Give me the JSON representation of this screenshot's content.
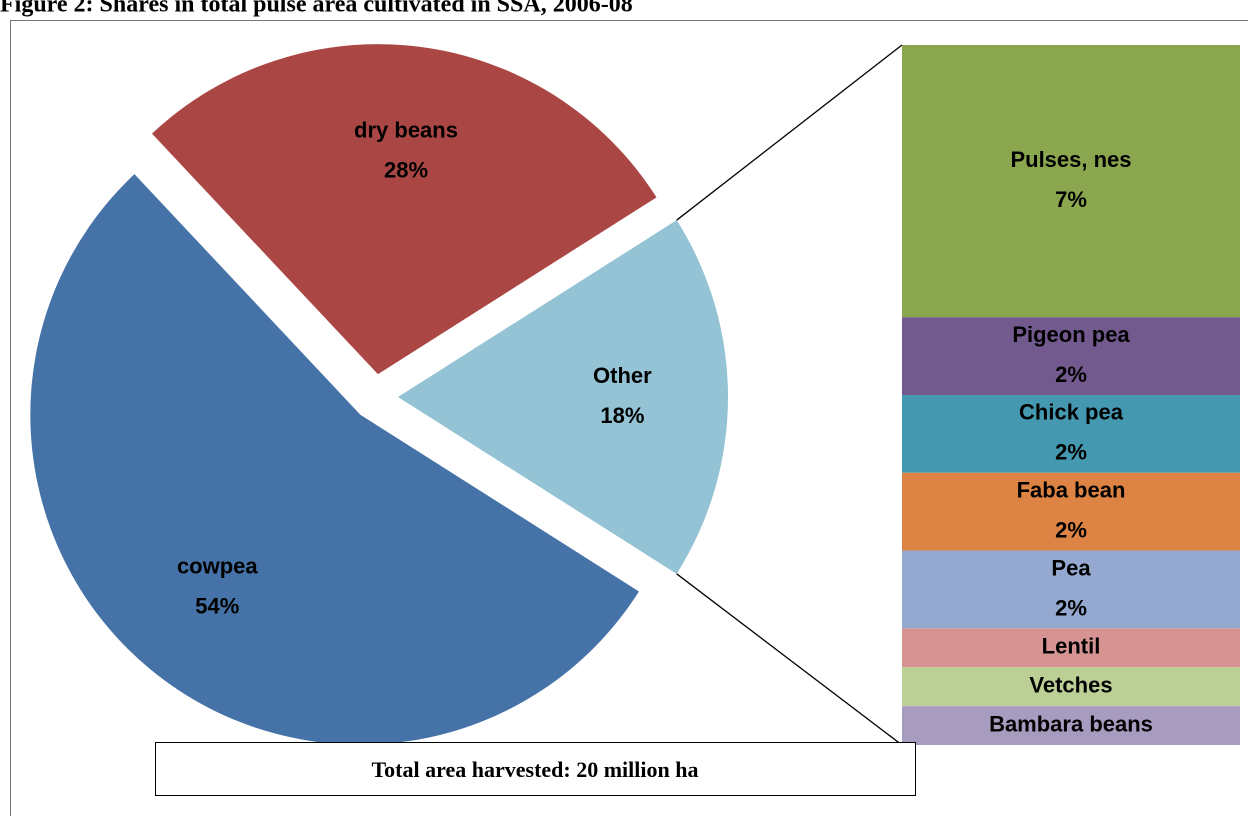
{
  "title": "Figure 2: Shares in total pulse area cultivated in SSA, 2006-08",
  "annotation": "Total area harvested: 20 million ha",
  "chart_data": [
    {
      "type": "pie",
      "categories": [
        "cowpea",
        "dry beans",
        "Other"
      ],
      "values": [
        54,
        28,
        18
      ],
      "value_labels": [
        "54%",
        "28%",
        "18%"
      ],
      "colors": [
        "#4572a7",
        "#aa4643",
        "#93c3d4"
      ]
    },
    {
      "type": "bar",
      "stacked": true,
      "categories": [
        "Pulses, nes",
        "Pigeon pea",
        "Chick pea",
        "Faba bean",
        "Pea",
        "Lentil",
        "Vetches",
        "Bambara beans"
      ],
      "values": [
        7,
        2,
        2,
        2,
        2,
        1,
        1,
        1
      ],
      "value_labels": [
        "7%",
        "2%",
        "2%",
        "2%",
        "2%",
        null,
        null,
        null
      ],
      "colors": [
        "#8aa64f",
        "#725a8e",
        "#4498b0",
        "#dd8444",
        "#95a9d0",
        "#d59392",
        "#bccf95",
        "#a89bc0"
      ]
    }
  ]
}
